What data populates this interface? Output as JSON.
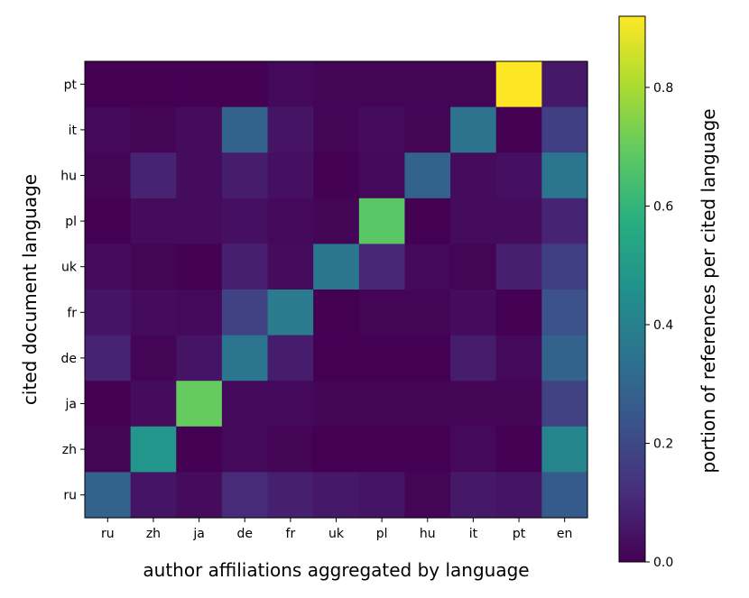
{
  "chart_data": {
    "type": "heatmap",
    "colormap": "viridis",
    "xlabel": "author affiliations aggregated by language",
    "ylabel": "cited document language",
    "colorbar_label": "portion of references per cited language",
    "x_categories": [
      "ru",
      "zh",
      "ja",
      "de",
      "fr",
      "uk",
      "pl",
      "hu",
      "it",
      "pt",
      "en"
    ],
    "y_categories_top_to_bottom": [
      "pt",
      "it",
      "hu",
      "pl",
      "uk",
      "fr",
      "de",
      "ja",
      "zh",
      "ru"
    ],
    "value_range": [
      0.0,
      0.92
    ],
    "colorbar_ticks": [
      {
        "value": 0.0,
        "label": "0.0"
      },
      {
        "value": 0.2,
        "label": "0.2"
      },
      {
        "value": 0.4,
        "label": "0.4"
      },
      {
        "value": 0.6,
        "label": "0.6"
      },
      {
        "value": 0.8,
        "label": "0.8"
      }
    ],
    "values": [
      [
        0.0,
        0.0,
        0.0,
        0.0,
        0.02,
        0.01,
        0.01,
        0.01,
        0.01,
        0.92,
        0.06
      ],
      [
        0.02,
        0.01,
        0.03,
        0.29,
        0.05,
        0.01,
        0.03,
        0.01,
        0.35,
        0.0,
        0.17
      ],
      [
        0.01,
        0.09,
        0.03,
        0.07,
        0.04,
        0.0,
        0.02,
        0.29,
        0.03,
        0.04,
        0.36
      ],
      [
        0.0,
        0.03,
        0.03,
        0.04,
        0.02,
        0.01,
        0.68,
        0.0,
        0.03,
        0.03,
        0.09
      ],
      [
        0.03,
        0.01,
        0.0,
        0.08,
        0.03,
        0.36,
        0.1,
        0.02,
        0.01,
        0.08,
        0.17
      ],
      [
        0.05,
        0.03,
        0.02,
        0.18,
        0.38,
        0.0,
        0.01,
        0.01,
        0.03,
        0.0,
        0.23
      ],
      [
        0.09,
        0.01,
        0.05,
        0.36,
        0.07,
        0.0,
        0.0,
        0.0,
        0.07,
        0.02,
        0.29
      ],
      [
        0.0,
        0.03,
        0.7,
        0.02,
        0.02,
        0.01,
        0.01,
        0.01,
        0.01,
        0.01,
        0.18
      ],
      [
        0.01,
        0.48,
        0.0,
        0.02,
        0.01,
        0.0,
        0.0,
        0.0,
        0.02,
        0.0,
        0.41
      ],
      [
        0.29,
        0.05,
        0.03,
        0.11,
        0.08,
        0.06,
        0.05,
        0.01,
        0.06,
        0.05,
        0.26
      ]
    ]
  }
}
